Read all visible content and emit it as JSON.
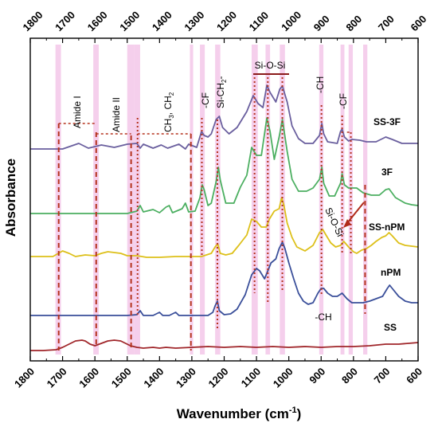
{
  "chart_data": {
    "type": "line",
    "xlabel": "Wavenumber (cm",
    "xlabel_sup": "-1",
    "xlabel_close": ")",
    "ylabel": "Absorbance",
    "xlim": [
      1800,
      600
    ],
    "x_reversed": true,
    "x_ticks": [
      1800,
      1700,
      1600,
      1500,
      1400,
      1300,
      1200,
      1100,
      1000,
      900,
      800,
      700,
      600
    ],
    "x_tick_labels": [
      "1800",
      "1700",
      "1600",
      "1500",
      "1400",
      "1300",
      "1200",
      "1100",
      "1000",
      "900",
      "800",
      "700",
      "600"
    ],
    "secondary_top_axis": true,
    "grid": false,
    "series": [
      {
        "name": "SS-3F",
        "color": "#6a5f9e",
        "points": [
          [
            1800,
            187
          ],
          [
            1700,
            187
          ],
          [
            1650,
            180
          ],
          [
            1620,
            186
          ],
          [
            1580,
            182
          ],
          [
            1540,
            185
          ],
          [
            1500,
            181
          ],
          [
            1470,
            180
          ],
          [
            1460,
            186
          ],
          [
            1450,
            181
          ],
          [
            1420,
            186
          ],
          [
            1395,
            182
          ],
          [
            1375,
            186
          ],
          [
            1340,
            181
          ],
          [
            1320,
            187
          ],
          [
            1310,
            181
          ],
          [
            1285,
            185
          ],
          [
            1270,
            165
          ],
          [
            1262,
            170
          ],
          [
            1250,
            172
          ],
          [
            1240,
            168
          ],
          [
            1225,
            150
          ],
          [
            1215,
            146
          ],
          [
            1205,
            160
          ],
          [
            1185,
            168
          ],
          [
            1160,
            160
          ],
          [
            1130,
            140
          ],
          [
            1110,
            120
          ],
          [
            1095,
            130
          ],
          [
            1080,
            135
          ],
          [
            1068,
            107
          ],
          [
            1058,
            116
          ],
          [
            1040,
            128
          ],
          [
            1028,
            112
          ],
          [
            1020,
            108
          ],
          [
            1005,
            128
          ],
          [
            990,
            158
          ],
          [
            970,
            174
          ],
          [
            950,
            180
          ],
          [
            925,
            180
          ],
          [
            905,
            170
          ],
          [
            898,
            155
          ],
          [
            892,
            168
          ],
          [
            880,
            178
          ],
          [
            850,
            180
          ],
          [
            840,
            165
          ],
          [
            835,
            162
          ],
          [
            828,
            172
          ],
          [
            815,
            177
          ],
          [
            805,
            175
          ],
          [
            780,
            176
          ],
          [
            760,
            178
          ],
          [
            730,
            178
          ],
          [
            700,
            172
          ],
          [
            680,
            175
          ],
          [
            650,
            180
          ],
          [
            620,
            180
          ],
          [
            600,
            180
          ]
        ]
      },
      {
        "name": "3F",
        "color": "#4caf61",
        "points": [
          [
            1800,
            268
          ],
          [
            1700,
            268
          ],
          [
            1600,
            268
          ],
          [
            1500,
            268
          ],
          [
            1470,
            265
          ],
          [
            1460,
            258
          ],
          [
            1450,
            266
          ],
          [
            1420,
            263
          ],
          [
            1400,
            267
          ],
          [
            1380,
            260
          ],
          [
            1370,
            258
          ],
          [
            1360,
            267
          ],
          [
            1330,
            262
          ],
          [
            1320,
            255
          ],
          [
            1310,
            266
          ],
          [
            1290,
            265
          ],
          [
            1275,
            248
          ],
          [
            1268,
            232
          ],
          [
            1262,
            238
          ],
          [
            1250,
            258
          ],
          [
            1240,
            255
          ],
          [
            1225,
            228
          ],
          [
            1218,
            210
          ],
          [
            1212,
            226
          ],
          [
            1195,
            255
          ],
          [
            1170,
            255
          ],
          [
            1150,
            235
          ],
          [
            1130,
            220
          ],
          [
            1115,
            185
          ],
          [
            1100,
            195
          ],
          [
            1085,
            195
          ],
          [
            1068,
            148
          ],
          [
            1058,
            165
          ],
          [
            1045,
            200
          ],
          [
            1030,
            172
          ],
          [
            1020,
            150
          ],
          [
            1005,
            190
          ],
          [
            990,
            225
          ],
          [
            970,
            240
          ],
          [
            945,
            240
          ],
          [
            925,
            236
          ],
          [
            905,
            225
          ],
          [
            898,
            210
          ],
          [
            892,
            230
          ],
          [
            875,
            246
          ],
          [
            858,
            246
          ],
          [
            840,
            230
          ],
          [
            835,
            218
          ],
          [
            828,
            232
          ],
          [
            815,
            236
          ],
          [
            805,
            236
          ],
          [
            790,
            236
          ],
          [
            770,
            242
          ],
          [
            745,
            245
          ],
          [
            720,
            245
          ],
          [
            700,
            238
          ],
          [
            690,
            237
          ],
          [
            670,
            248
          ],
          [
            640,
            255
          ],
          [
            620,
            257
          ],
          [
            600,
            258
          ]
        ]
      },
      {
        "name": "SS-nPM",
        "color": "#ddc01a",
        "points": [
          [
            1800,
            322
          ],
          [
            1760,
            322
          ],
          [
            1730,
            322
          ],
          [
            1700,
            315
          ],
          [
            1680,
            318
          ],
          [
            1660,
            322
          ],
          [
            1630,
            320
          ],
          [
            1600,
            321
          ],
          [
            1580,
            318
          ],
          [
            1560,
            316
          ],
          [
            1520,
            318
          ],
          [
            1500,
            321
          ],
          [
            1470,
            321
          ],
          [
            1440,
            323
          ],
          [
            1400,
            323
          ],
          [
            1350,
            322
          ],
          [
            1300,
            322
          ],
          [
            1270,
            322
          ],
          [
            1255,
            320
          ],
          [
            1240,
            318
          ],
          [
            1228,
            310
          ],
          [
            1220,
            306
          ],
          [
            1212,
            318
          ],
          [
            1195,
            320
          ],
          [
            1175,
            318
          ],
          [
            1155,
            308
          ],
          [
            1130,
            295
          ],
          [
            1115,
            275
          ],
          [
            1100,
            278
          ],
          [
            1085,
            285
          ],
          [
            1070,
            285
          ],
          [
            1060,
            275
          ],
          [
            1045,
            265
          ],
          [
            1030,
            262
          ],
          [
            1022,
            248
          ],
          [
            1015,
            258
          ],
          [
            1005,
            280
          ],
          [
            990,
            298
          ],
          [
            975,
            310
          ],
          [
            950,
            315
          ],
          [
            925,
            308
          ],
          [
            905,
            292
          ],
          [
            895,
            288
          ],
          [
            885,
            295
          ],
          [
            870,
            305
          ],
          [
            855,
            310
          ],
          [
            840,
            308
          ],
          [
            830,
            303
          ],
          [
            815,
            310
          ],
          [
            800,
            316
          ],
          [
            790,
            318
          ],
          [
            775,
            314
          ],
          [
            760,
            312
          ],
          [
            745,
            308
          ],
          [
            730,
            303
          ],
          [
            712,
            298
          ],
          [
            700,
            296
          ],
          [
            690,
            292
          ],
          [
            680,
            296
          ],
          [
            660,
            305
          ],
          [
            640,
            308
          ],
          [
            620,
            309
          ],
          [
            600,
            310
          ]
        ]
      },
      {
        "name": "nPM",
        "color": "#3a4f9a",
        "points": [
          [
            1800,
            396
          ],
          [
            1700,
            396
          ],
          [
            1600,
            396
          ],
          [
            1500,
            396
          ],
          [
            1470,
            395
          ],
          [
            1460,
            390
          ],
          [
            1450,
            396
          ],
          [
            1420,
            396
          ],
          [
            1400,
            392
          ],
          [
            1390,
            396
          ],
          [
            1370,
            396
          ],
          [
            1350,
            392
          ],
          [
            1340,
            396
          ],
          [
            1300,
            396
          ],
          [
            1275,
            396
          ],
          [
            1250,
            396
          ],
          [
            1235,
            392
          ],
          [
            1228,
            384
          ],
          [
            1221,
            378
          ],
          [
            1215,
            390
          ],
          [
            1200,
            395
          ],
          [
            1180,
            394
          ],
          [
            1160,
            388
          ],
          [
            1135,
            370
          ],
          [
            1115,
            345
          ],
          [
            1100,
            337
          ],
          [
            1090,
            340
          ],
          [
            1075,
            350
          ],
          [
            1065,
            340
          ],
          [
            1055,
            330
          ],
          [
            1040,
            325
          ],
          [
            1030,
            312
          ],
          [
            1020,
            304
          ],
          [
            1012,
            312
          ],
          [
            1000,
            330
          ],
          [
            985,
            350
          ],
          [
            970,
            368
          ],
          [
            955,
            378
          ],
          [
            940,
            382
          ],
          [
            925,
            380
          ],
          [
            910,
            368
          ],
          [
            900,
            362
          ],
          [
            892,
            362
          ],
          [
            880,
            368
          ],
          [
            865,
            372
          ],
          [
            850,
            372
          ],
          [
            835,
            368
          ],
          [
            820,
            375
          ],
          [
            805,
            380
          ],
          [
            790,
            380
          ],
          [
            770,
            380
          ],
          [
            750,
            378
          ],
          [
            730,
            375
          ],
          [
            710,
            372
          ],
          [
            695,
            362
          ],
          [
            688,
            358
          ],
          [
            680,
            362
          ],
          [
            660,
            372
          ],
          [
            640,
            378
          ],
          [
            620,
            380
          ],
          [
            600,
            380
          ]
        ]
      },
      {
        "name": "SS",
        "color": "#a0262a",
        "points": [
          [
            1800,
            440
          ],
          [
            1760,
            440
          ],
          [
            1720,
            439
          ],
          [
            1700,
            436
          ],
          [
            1680,
            432
          ],
          [
            1660,
            428
          ],
          [
            1640,
            427
          ],
          [
            1630,
            428
          ],
          [
            1615,
            432
          ],
          [
            1600,
            434
          ],
          [
            1580,
            431
          ],
          [
            1560,
            428
          ],
          [
            1540,
            427
          ],
          [
            1520,
            428
          ],
          [
            1505,
            431
          ],
          [
            1490,
            434
          ],
          [
            1470,
            436
          ],
          [
            1450,
            437
          ],
          [
            1420,
            436
          ],
          [
            1400,
            437
          ],
          [
            1380,
            436
          ],
          [
            1350,
            437
          ],
          [
            1300,
            436
          ],
          [
            1250,
            435
          ],
          [
            1200,
            436
          ],
          [
            1150,
            435
          ],
          [
            1100,
            436
          ],
          [
            1050,
            435
          ],
          [
            1000,
            436
          ],
          [
            950,
            435
          ],
          [
            900,
            436
          ],
          [
            850,
            435
          ],
          [
            800,
            435
          ],
          [
            750,
            434
          ],
          [
            700,
            432
          ],
          [
            660,
            432
          ],
          [
            630,
            431
          ],
          [
            600,
            430
          ]
        ]
      }
    ],
    "series_labels": [
      "SS-3F",
      "3F",
      "SS-nPM",
      "nPM",
      "SS"
    ],
    "annotations": {
      "amide_i": "Amide I",
      "amide_ii": "Amide II",
      "ch3_ch2": "CH",
      "ch3_ch2_sub1": "3",
      "ch3_ch2_mid": ", CH",
      "ch3_ch2_sub2": "2",
      "cf_left": "-CF",
      "si_ch2": "Si-CH",
      "si_ch2_sub": "2",
      "si_ch2_end": "-",
      "si_o_si_top": "Si-O-Si",
      "ch_top": "-CH",
      "cf_right": "-CF",
      "si_o_si_lower": "Si-O-Si",
      "ch_lower": "-CH"
    },
    "highlight_color": "#f2bfe5",
    "marker_color": "#b5341f"
  }
}
